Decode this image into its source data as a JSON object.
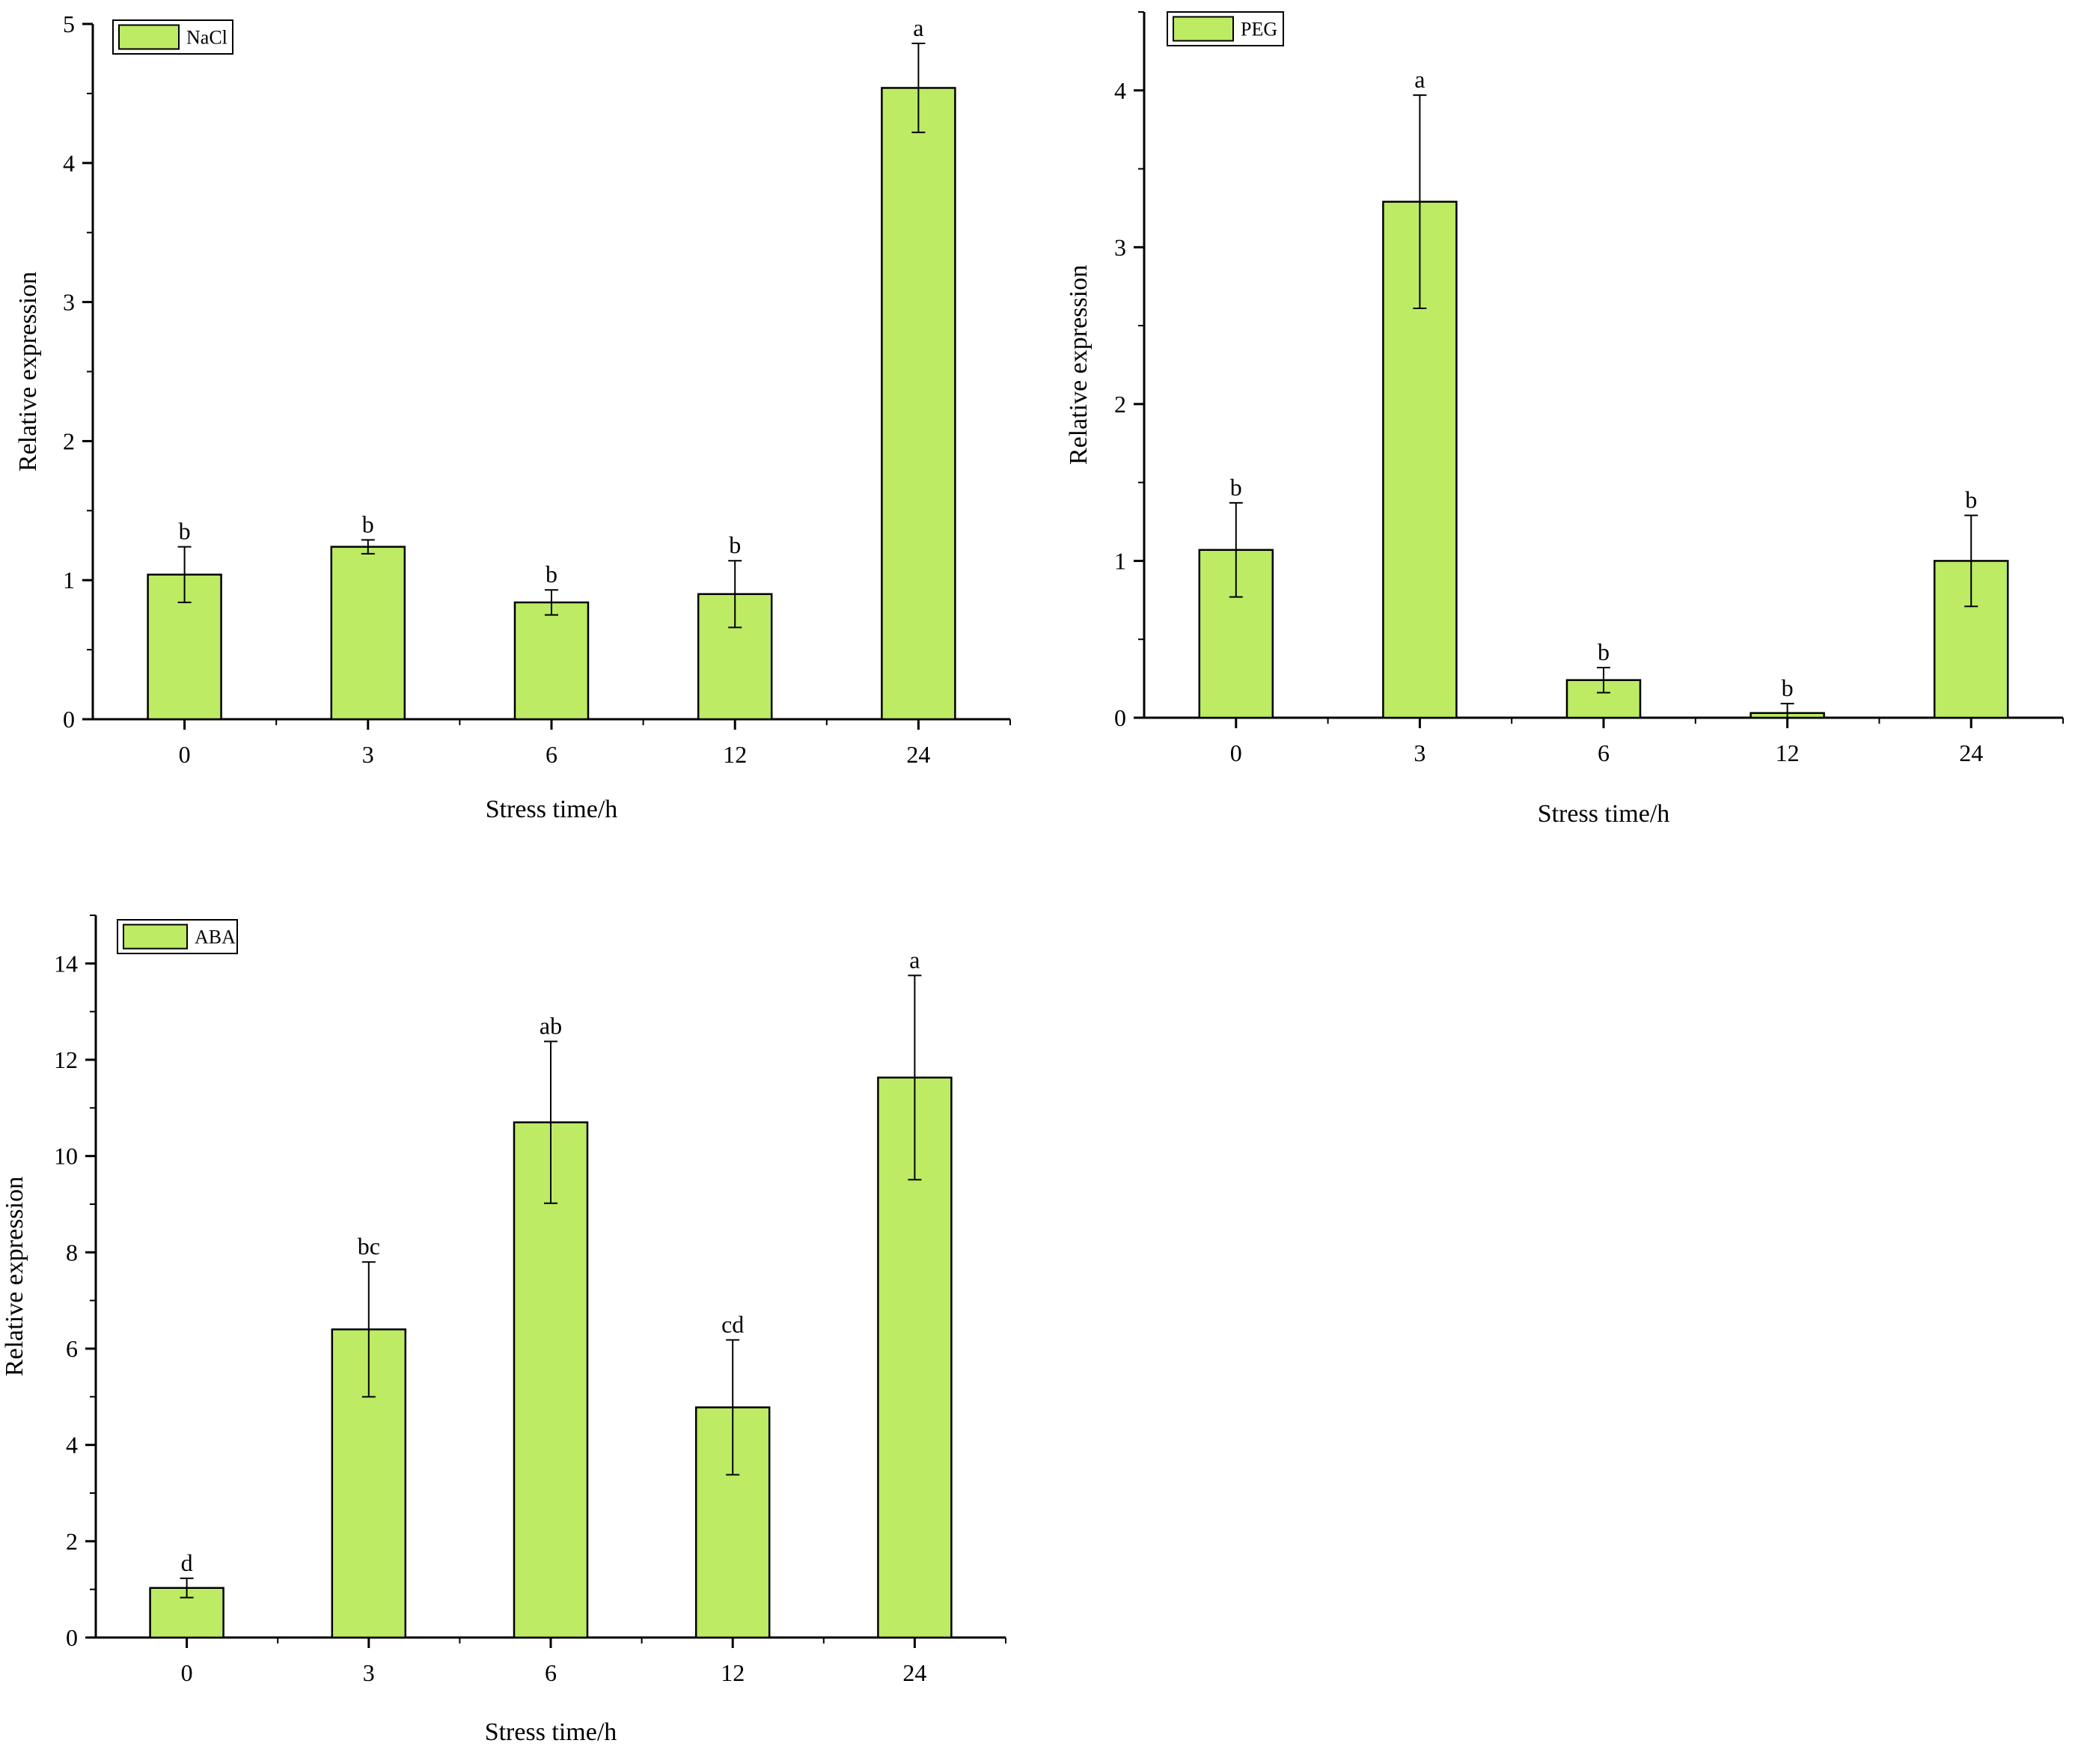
{
  "colors": {
    "bar": "#bdeb64",
    "stroke": "#000000",
    "background": "#ffffff"
  },
  "chart_data": [
    {
      "type": "bar",
      "title": "",
      "legend": "NaCl",
      "xlabel": "Stress time/h",
      "ylabel": "Relative expression",
      "categories": [
        "0",
        "3",
        "6",
        "12",
        "24"
      ],
      "values": [
        1.04,
        1.24,
        0.84,
        0.9,
        4.54
      ],
      "errors": [
        0.2,
        0.05,
        0.09,
        0.24,
        0.32
      ],
      "significance": [
        "b",
        "b",
        "b",
        "b",
        "a"
      ],
      "ylim": [
        0,
        5
      ],
      "yticks": [
        0,
        1,
        2,
        3,
        4,
        5
      ]
    },
    {
      "type": "bar",
      "title": "",
      "legend": "PEG",
      "xlabel": "Stress time/h",
      "ylabel": "Relative expression",
      "categories": [
        "0",
        "3",
        "6",
        "12",
        "24"
      ],
      "values": [
        1.07,
        3.29,
        0.24,
        0.03,
        1.0
      ],
      "errors": [
        0.3,
        0.68,
        0.08,
        0.06,
        0.29
      ],
      "significance": [
        "b",
        "a",
        "b",
        "b",
        "b"
      ],
      "ylim": [
        0,
        4.5
      ],
      "yticks": [
        0,
        1,
        2,
        3,
        4
      ]
    },
    {
      "type": "bar",
      "title": "",
      "legend": "ABA",
      "xlabel": "Stress time/h",
      "ylabel": "Relative expression",
      "categories": [
        "0",
        "3",
        "6",
        "12",
        "24"
      ],
      "values": [
        1.03,
        6.4,
        10.7,
        4.78,
        11.63
      ],
      "errors": [
        0.2,
        1.4,
        1.68,
        1.4,
        2.12
      ],
      "significance": [
        "d",
        "bc",
        "ab",
        "cd",
        "a"
      ],
      "ylim": [
        0,
        15
      ],
      "yticks": [
        0,
        2,
        4,
        6,
        8,
        10,
        12,
        14
      ]
    }
  ]
}
